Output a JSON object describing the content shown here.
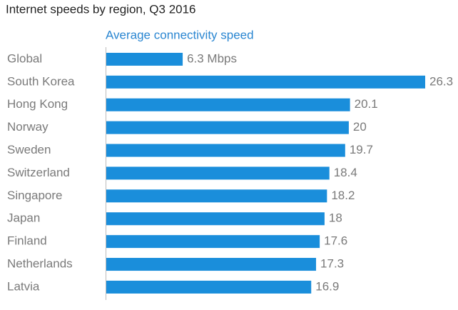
{
  "chart_data": {
    "type": "bar",
    "orientation": "horizontal",
    "title": "Internet speeds by region, Q3 2016",
    "series": [
      {
        "name": "Average connectivity speed",
        "color": "#1a8edb",
        "values": [
          6.3,
          26.3,
          20.1,
          20,
          19.7,
          18.4,
          18.2,
          18,
          17.6,
          17.3,
          16.9
        ],
        "value_labels": [
          "6.3 Mbps",
          "26.3",
          "20.1",
          "20",
          "19.7",
          "18.4",
          "18.2",
          "18",
          "17.6",
          "17.3",
          "16.9"
        ]
      }
    ],
    "categories": [
      "Global",
      "South Korea",
      "Hong Kong",
      "Norway",
      "Sweden",
      "Switzerland",
      "Singapore",
      "Japan",
      "Finland",
      "Netherlands",
      "Latvia"
    ]
  }
}
